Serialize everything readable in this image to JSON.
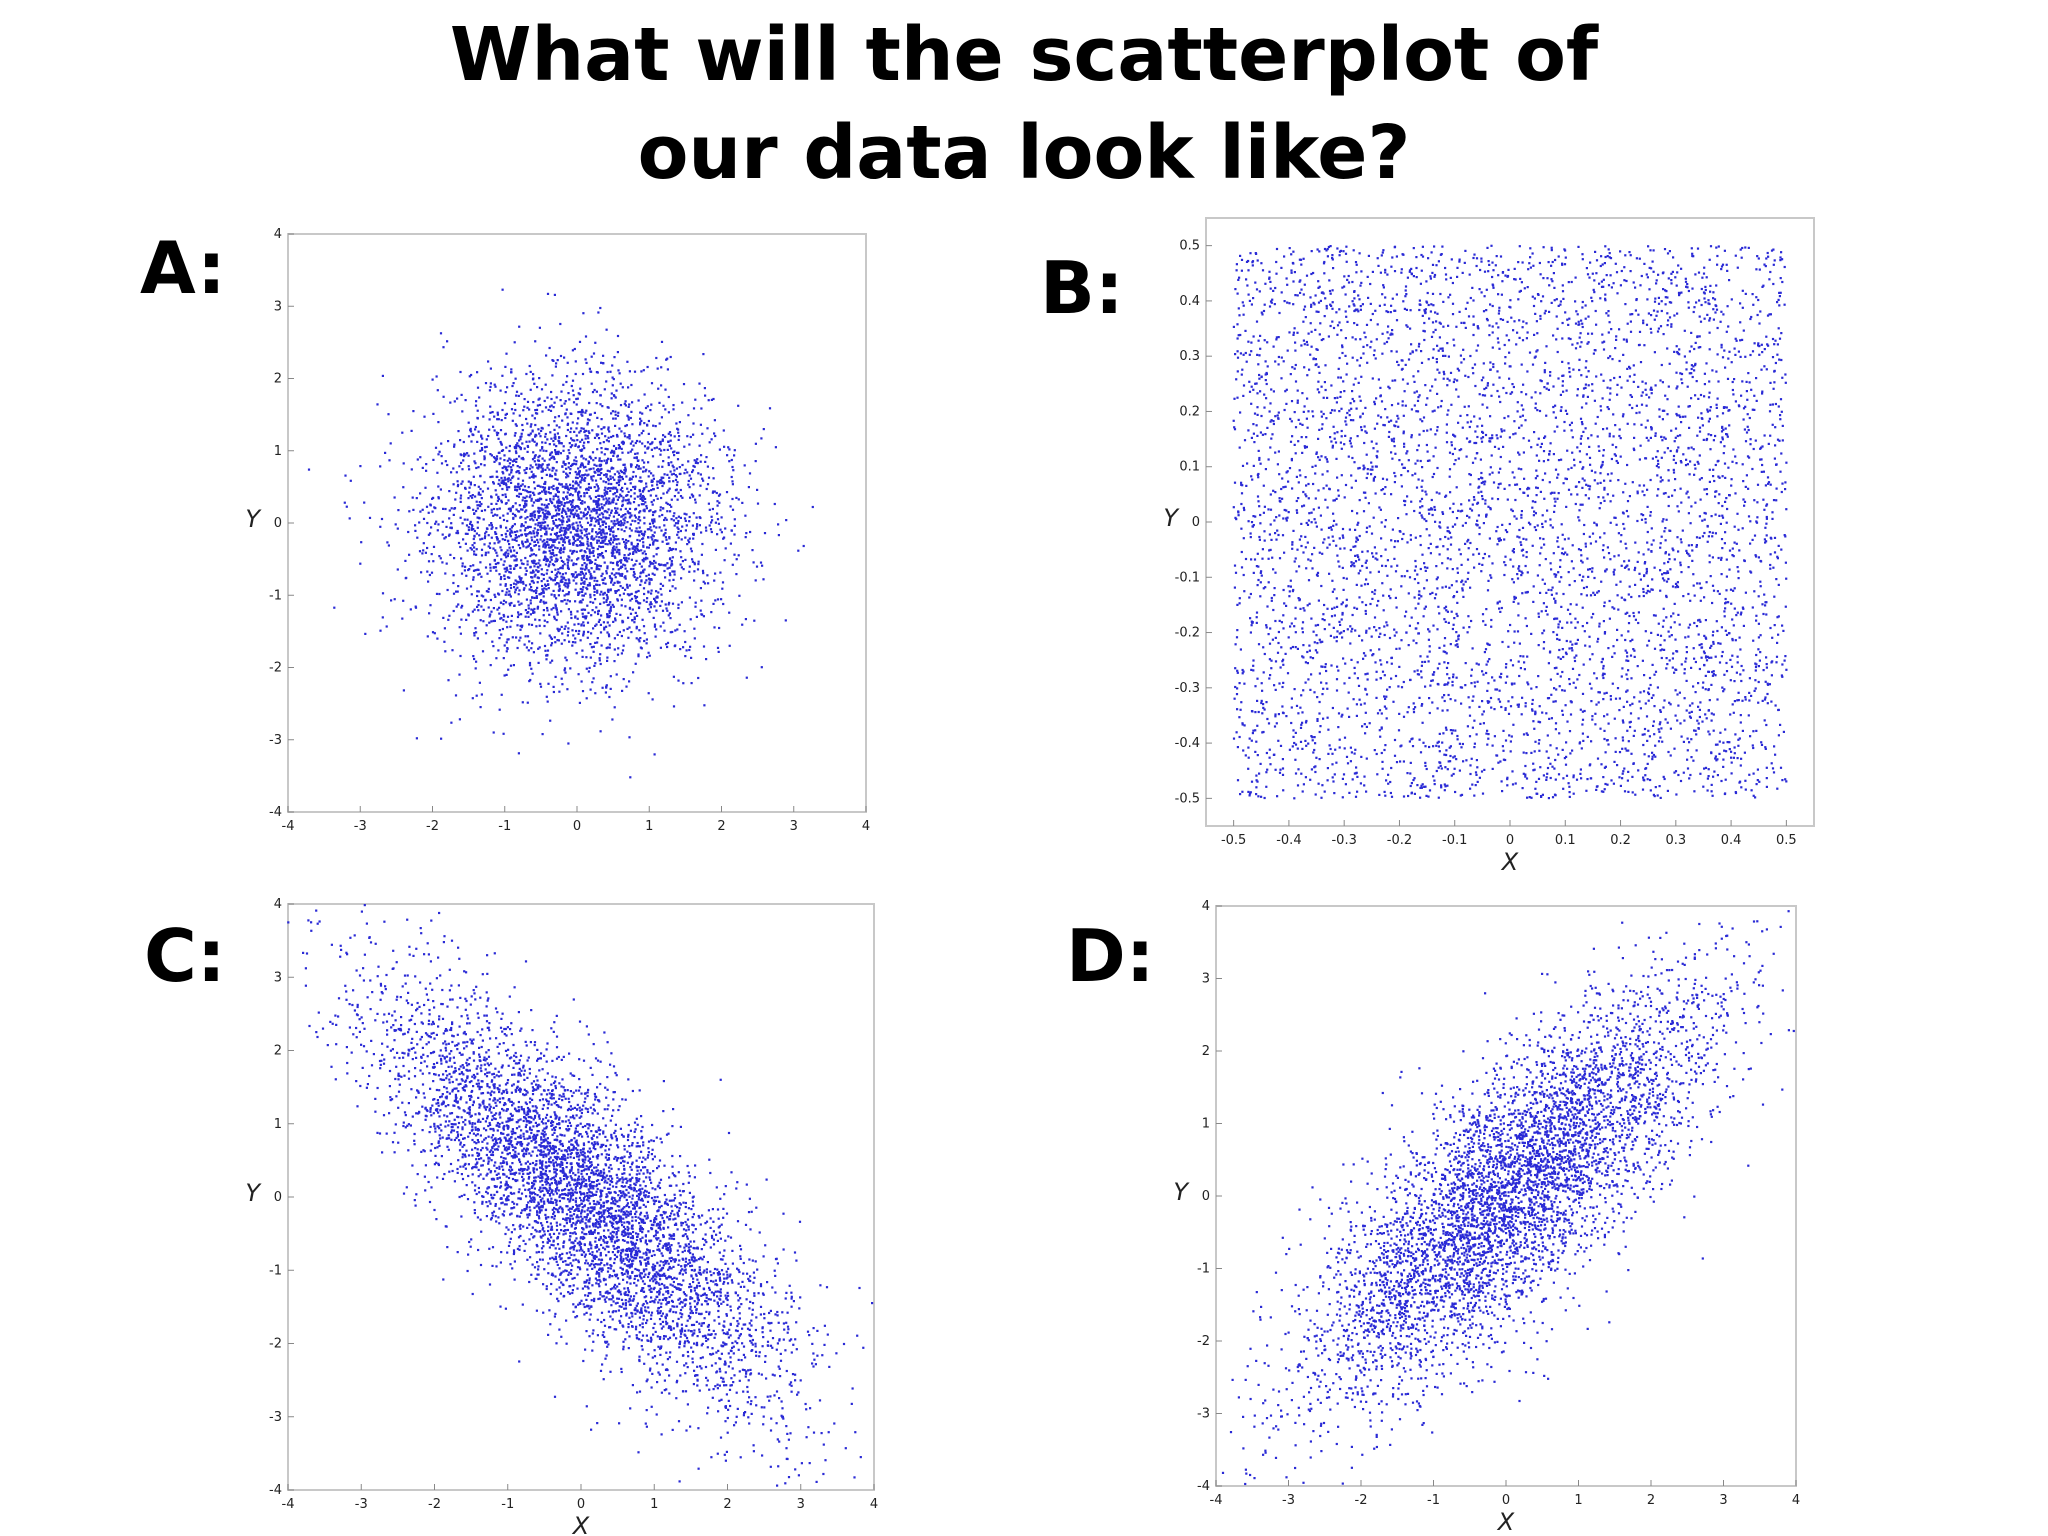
{
  "title": {
    "line1": "What will the scatterplot of",
    "line2": "our data look like?"
  },
  "colors": {
    "point": "#2a2ad6",
    "frame": "#c8c8c8",
    "text": "#000000"
  },
  "chart_data": [
    {
      "panel": "A:",
      "type": "scatter",
      "distribution": "bivariate normal, uncorrelated",
      "correlation": 0.0,
      "std": [
        1,
        1
      ],
      "n_points": 4000,
      "xlim": [
        -4,
        4
      ],
      "ylim": [
        -4,
        4
      ],
      "xticks": [
        "-4",
        "-3",
        "-2",
        "-1",
        "0",
        "1",
        "2",
        "3",
        "4"
      ],
      "yticks": [
        "-4",
        "-3",
        "-2",
        "-1",
        "0",
        "1",
        "2",
        "3",
        "4"
      ],
      "xlabel": "",
      "ylabel": "Y",
      "grid": false
    },
    {
      "panel": "B:",
      "type": "scatter",
      "distribution": "uniform on [-0.5, 0.5] x [-0.5, 0.5]",
      "range": [
        -0.5,
        0.5
      ],
      "n_points": 5000,
      "xlim": [
        -0.55,
        0.55
      ],
      "ylim": [
        -0.55,
        0.55
      ],
      "xticks": [
        "-0.5",
        "-0.4",
        "-0.3",
        "-0.2",
        "-0.1",
        "0",
        "0.1",
        "0.2",
        "0.3",
        "0.4",
        "0.5"
      ],
      "yticks": [
        "-0.5",
        "-0.4",
        "-0.3",
        "-0.2",
        "-0.1",
        "0",
        "0.1",
        "0.2",
        "0.3",
        "0.4",
        "0.5"
      ],
      "xlabel": "X",
      "ylabel": "Y",
      "grid": false
    },
    {
      "panel": "C:",
      "type": "scatter",
      "distribution": "bivariate normal, negatively correlated",
      "correlation": -0.8,
      "std": [
        1.4,
        1.4
      ],
      "n_points": 5000,
      "xlim": [
        -4,
        4
      ],
      "ylim": [
        -4,
        4
      ],
      "xticks": [
        "-4",
        "-3",
        "-2",
        "-1",
        "0",
        "1",
        "2",
        "3",
        "4"
      ],
      "yticks": [
        "-4",
        "-3",
        "-2",
        "-1",
        "0",
        "1",
        "2",
        "3",
        "4"
      ],
      "xlabel": "X",
      "ylabel": "Y",
      "grid": false
    },
    {
      "panel": "D:",
      "type": "scatter",
      "distribution": "bivariate normal, positively correlated",
      "correlation": 0.8,
      "std": [
        1.4,
        1.4
      ],
      "n_points": 5000,
      "xlim": [
        -4,
        4
      ],
      "ylim": [
        -4,
        4
      ],
      "xticks": [
        "-4",
        "-3",
        "-2",
        "-1",
        "0",
        "1",
        "2",
        "3",
        "4"
      ],
      "yticks": [
        "-4",
        "-3",
        "-2",
        "-1",
        "0",
        "1",
        "2",
        "3",
        "4"
      ],
      "xlabel": "X",
      "ylabel": "Y",
      "grid": false
    }
  ]
}
